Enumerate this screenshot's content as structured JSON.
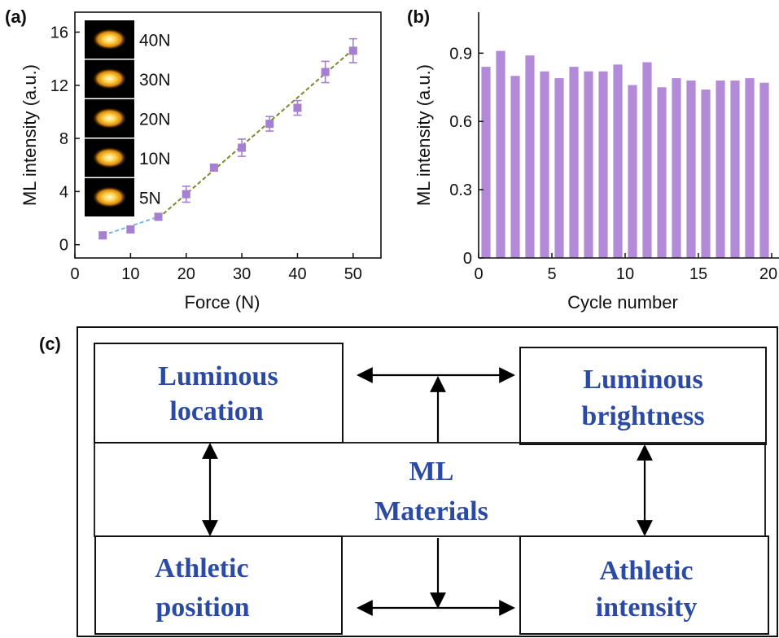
{
  "panels": {
    "a": "(a)",
    "b": "(b)",
    "c": "(c)"
  },
  "chart_data": [
    {
      "type": "scatter",
      "panel": "(a)",
      "xlabel": "Force (N)",
      "ylabel": "ML intensity (a.u.)",
      "xlim": [
        0,
        55
      ],
      "ylim": [
        -1,
        17.5
      ],
      "xticks": [
        0,
        10,
        20,
        30,
        40,
        50
      ],
      "yticks": [
        0,
        4,
        8,
        12,
        16
      ],
      "marker_color": "#a57fd0",
      "points": [
        {
          "x": 5,
          "y": 0.7,
          "err": 0.25
        },
        {
          "x": 10,
          "y": 1.15,
          "err": 0.2
        },
        {
          "x": 15,
          "y": 2.1,
          "err": 0.25
        },
        {
          "x": 20,
          "y": 3.8,
          "err": 0.6
        },
        {
          "x": 25,
          "y": 5.8,
          "err": 0.25
        },
        {
          "x": 30,
          "y": 7.3,
          "err": 0.65
        },
        {
          "x": 35,
          "y": 9.1,
          "err": 0.55
        },
        {
          "x": 40,
          "y": 10.3,
          "err": 0.55
        },
        {
          "x": 45,
          "y": 13.0,
          "err": 0.8
        },
        {
          "x": 50,
          "y": 14.6,
          "err": 0.9
        }
      ],
      "fits": [
        {
          "color": "#7ab8e0",
          "x": [
            5,
            15
          ],
          "y": [
            0.7,
            2.1
          ]
        },
        {
          "color": "#7a8a2a",
          "x": [
            15,
            50
          ],
          "y": [
            2.0,
            14.7
          ]
        }
      ],
      "insets": [
        "40N",
        "30N",
        "20N",
        "10N",
        "5N"
      ]
    },
    {
      "type": "bar",
      "panel": "(b)",
      "xlabel": "Cycle number",
      "ylabel": "ML intensity (a.u.)",
      "xlim": [
        0,
        20.5
      ],
      "ylim": [
        0,
        1.08
      ],
      "xticks": [
        0,
        5,
        10,
        15,
        20
      ],
      "yticks": [
        "0",
        "0.3",
        "0.6",
        "0.9"
      ],
      "bar_color": "#b28ad8",
      "categories": [
        1,
        2,
        3,
        4,
        5,
        6,
        7,
        8,
        9,
        10,
        11,
        12,
        13,
        14,
        15,
        16,
        17,
        18,
        19,
        20
      ],
      "values": [
        0.84,
        0.91,
        0.8,
        0.89,
        0.82,
        0.79,
        0.84,
        0.82,
        0.82,
        0.85,
        0.76,
        0.86,
        0.75,
        0.79,
        0.78,
        0.74,
        0.78,
        0.78,
        0.79,
        0.77
      ]
    }
  ],
  "diagram": {
    "boxes": {
      "location": [
        "Luminous",
        "location"
      ],
      "brightness": [
        "Luminous",
        "brightness"
      ],
      "center": [
        "ML",
        "Materials"
      ],
      "position": [
        "Athletic",
        "position"
      ],
      "intensity": [
        "Athletic",
        "intensity"
      ]
    },
    "text_color": "#2b4aa3"
  }
}
